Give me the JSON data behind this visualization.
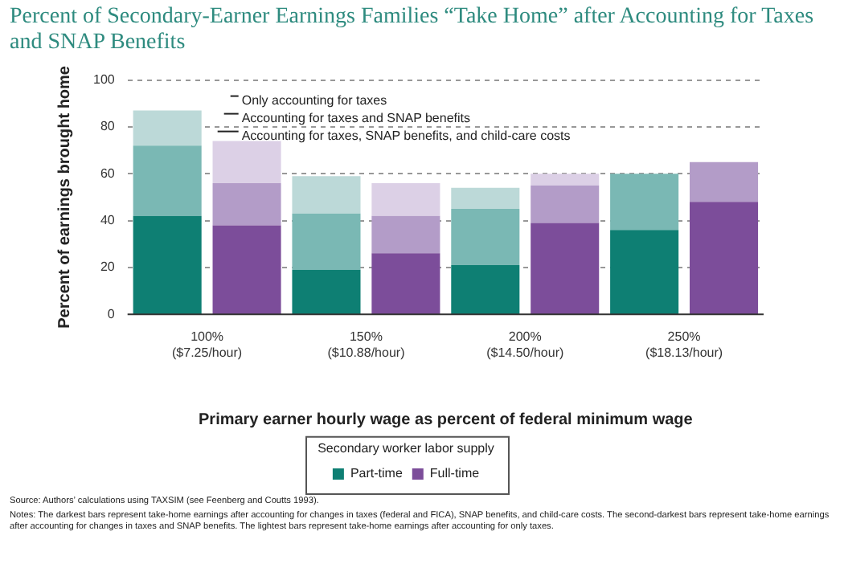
{
  "chart_data": {
    "type": "bar",
    "title": "Percent of Secondary-Earner Earnings Families “Take Home” after Accounting for Taxes and SNAP Benefits",
    "xlabel": "Primary earner hourly wage as percent of federal minimum wage",
    "ylabel": "Percent of earnings brought home",
    "legend_title": "Secondary worker labor supply",
    "categories": [
      "100%\n($7.25/hour)",
      null,
      "150%\n($10.88/hour)",
      null,
      "200%\n($14.50/hour)",
      null,
      "250%\n($18.13/hour)",
      null
    ],
    "series": [
      {
        "name": "Part-time",
        "color": "#0e7f73",
        "values": [
          42,
          null,
          19,
          null,
          21,
          null,
          36,
          null
        ]
      },
      {
        "color": "#7ab8b4",
        "values": [
          30,
          null,
          24,
          null,
          24,
          null,
          24,
          null
        ]
      },
      {
        "color": "#bcd9d8",
        "values": [
          15,
          null,
          16,
          null,
          9,
          null,
          0,
          null
        ]
      },
      {
        "name": "Full-time",
        "color": "#7c4d9a",
        "values": [
          null,
          38,
          null,
          26,
          null,
          39,
          null,
          48
        ]
      },
      {
        "color": "#b39cc8",
        "values": [
          null,
          18,
          null,
          16,
          null,
          16,
          null,
          17
        ]
      },
      {
        "color": "#dcd0e6",
        "values": [
          null,
          18,
          null,
          14,
          null,
          5,
          null,
          0
        ]
      }
    ],
    "stacked": true,
    "ylim": [
      0,
      100
    ],
    "yticks": [
      0,
      20,
      40,
      60,
      80,
      100
    ],
    "grid": "y",
    "legend": "bottom",
    "annotations": [
      "Only accounting for taxes",
      "Accounting for taxes and SNAP benefits",
      "Accounting for taxes, SNAP benefits, and child-care costs",
      "Source: Authors’ calculations using TAXSIM (see Feenberg and Coutts 1993).",
      "Notes: The darkest bars represent take-home earnings after accounting for changes in taxes (federal and FICA), SNAP benefits, and child-care costs. The second-darkest bars represent take-home earnings after accounting for changes in taxes and SNAP benefits. The lightest bars represent take-home earnings after accounting for only taxes."
    ]
  }
}
